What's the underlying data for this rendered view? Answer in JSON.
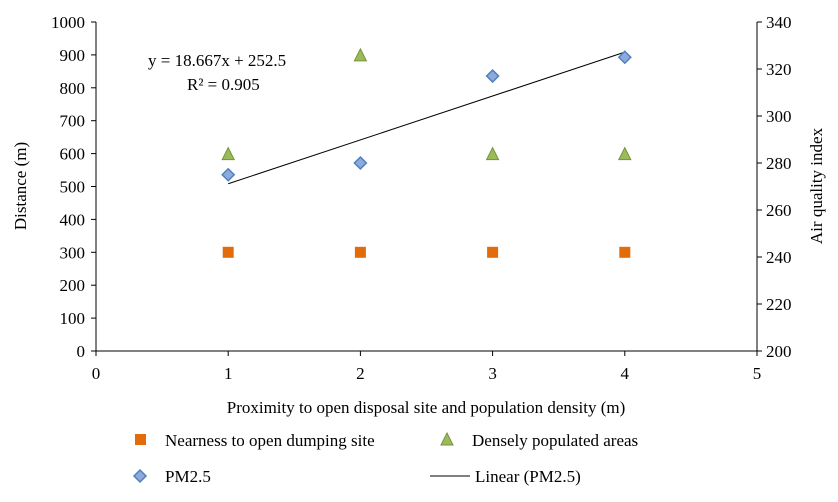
{
  "chart_data": {
    "type": "scatter",
    "title": "",
    "xlabel": "Proximity to open disposal site and population density (m)",
    "ylabel": "Distance (m)",
    "y2label": "Air quality index",
    "xlim": [
      0,
      5
    ],
    "ylim": [
      0,
      1000
    ],
    "y2lim": [
      200,
      340
    ],
    "xticks": [
      "0",
      "1",
      "2",
      "3",
      "4",
      "5"
    ],
    "yticks": [
      "0",
      "100",
      "200",
      "300",
      "400",
      "500",
      "600",
      "700",
      "800",
      "900",
      "1000"
    ],
    "y2ticks": [
      "200",
      "220",
      "240",
      "260",
      "280",
      "300",
      "320",
      "340"
    ],
    "grid": false,
    "series": [
      {
        "name": "Nearness to open dumping site",
        "axis": "left",
        "marker": "square",
        "color": "#E36C0A",
        "x": [
          1,
          2,
          3,
          4
        ],
        "y": [
          300,
          300,
          300,
          300
        ]
      },
      {
        "name": "Densely populated areas",
        "axis": "left",
        "marker": "triangle",
        "color": "#9BBB59",
        "x": [
          1,
          2,
          3,
          4
        ],
        "y": [
          600,
          900,
          600,
          600
        ]
      },
      {
        "name": "PM2.5",
        "axis": "right",
        "marker": "diamond",
        "color": "#4F81BD",
        "x": [
          1,
          2,
          3,
          4
        ],
        "y": [
          275,
          280,
          317,
          325
        ]
      }
    ],
    "trendline": {
      "name": "Linear (PM2.5)",
      "axis": "right",
      "slope": 18.667,
      "intercept": 252.5,
      "x_range": [
        1,
        4
      ],
      "color": "#000000"
    },
    "annotations": {
      "equation": "y = 18.667x + 252.5",
      "r_squared": "R² = 0.905"
    },
    "legend_position": "bottom"
  }
}
